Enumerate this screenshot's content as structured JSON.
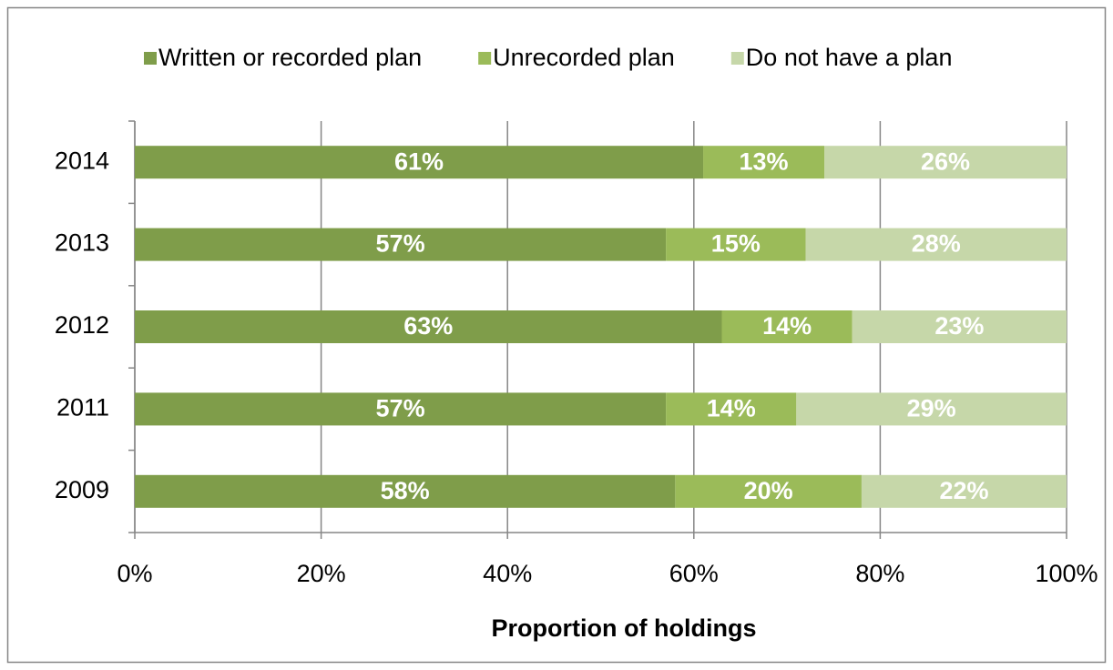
{
  "chart_data": {
    "type": "stacked_bar_horizontal",
    "categories": [
      "2014",
      "2013",
      "2012",
      "2011",
      "2009"
    ],
    "series": [
      {
        "name": "Written or recorded plan",
        "color": "#7f9d4a",
        "values": [
          61,
          57,
          63,
          57,
          58
        ],
        "value_labels": [
          "61%",
          "57%",
          "63%",
          "57%",
          "58%"
        ]
      },
      {
        "name": "Unrecorded plan",
        "color": "#9bbb59",
        "values": [
          13,
          15,
          14,
          14,
          20
        ],
        "value_labels": [
          "13%",
          "15%",
          "14%",
          "14%",
          "20%"
        ]
      },
      {
        "name": "Do not have a plan",
        "color": "#c6d7a9",
        "values": [
          26,
          28,
          23,
          29,
          22
        ],
        "value_labels": [
          "26%",
          "28%",
          "23%",
          "29%",
          "22%"
        ]
      }
    ],
    "xlabel": "Proportion of holdings",
    "xlim": [
      0,
      100
    ],
    "xticks": [
      {
        "value": 0,
        "label": "0%"
      },
      {
        "value": 20,
        "label": "20%"
      },
      {
        "value": 40,
        "label": "40%"
      },
      {
        "value": 60,
        "label": "60%"
      },
      {
        "value": 80,
        "label": "80%"
      },
      {
        "value": 100,
        "label": "100%"
      }
    ],
    "grid": true,
    "legend": "top"
  }
}
